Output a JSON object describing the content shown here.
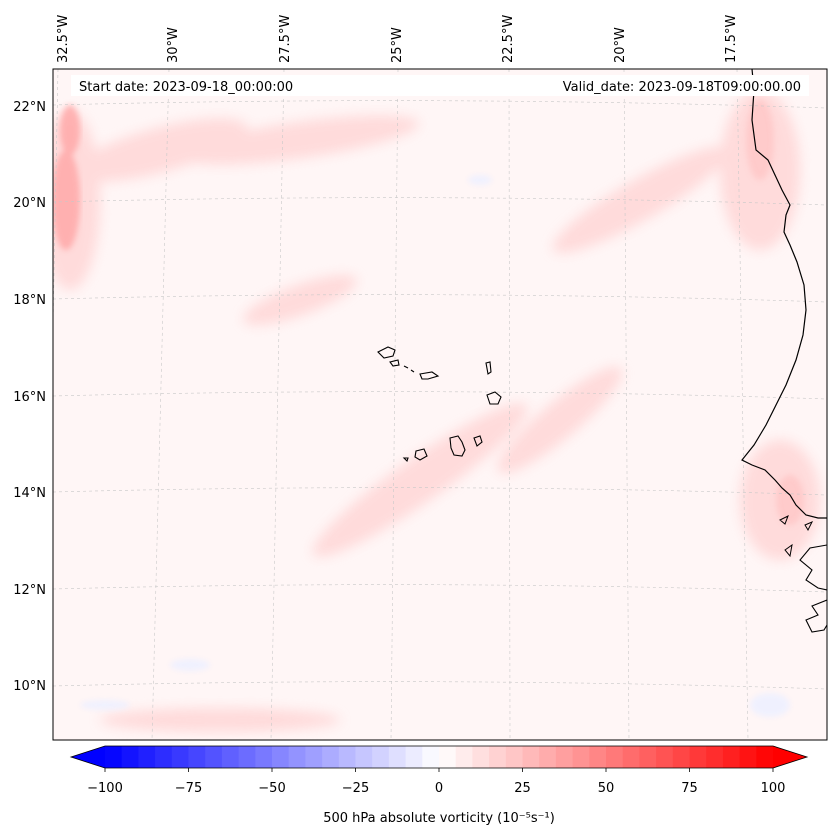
{
  "header": {
    "start_date": "Start date: 2023-09-18_00:00:00",
    "valid_date": "Valid_date: 2023-09-18T09:00:00.00"
  },
  "lon_labels": [
    "32.5°W",
    "30°W",
    "27.5°W",
    "25°W",
    "22.5°W",
    "20°W",
    "17.5°W"
  ],
  "lat_labels": [
    "22°N",
    "20°N",
    "18°N",
    "16°N",
    "14°N",
    "12°N",
    "10°N"
  ],
  "colorbar": {
    "ticks": [
      "−100",
      "−75",
      "−50",
      "−25",
      "0",
      "25",
      "50",
      "75",
      "100"
    ],
    "min": -100,
    "max": 100,
    "label": "500 hPa absolute vorticity (10⁻⁵s⁻¹)",
    "low_color": "#0000ff",
    "mid_color": "#ffffff",
    "high_color": "#ff0000"
  },
  "colors": {
    "background_field": "#fff5f5",
    "coastline": "#000000",
    "gridline": "#bbbbbb"
  }
}
